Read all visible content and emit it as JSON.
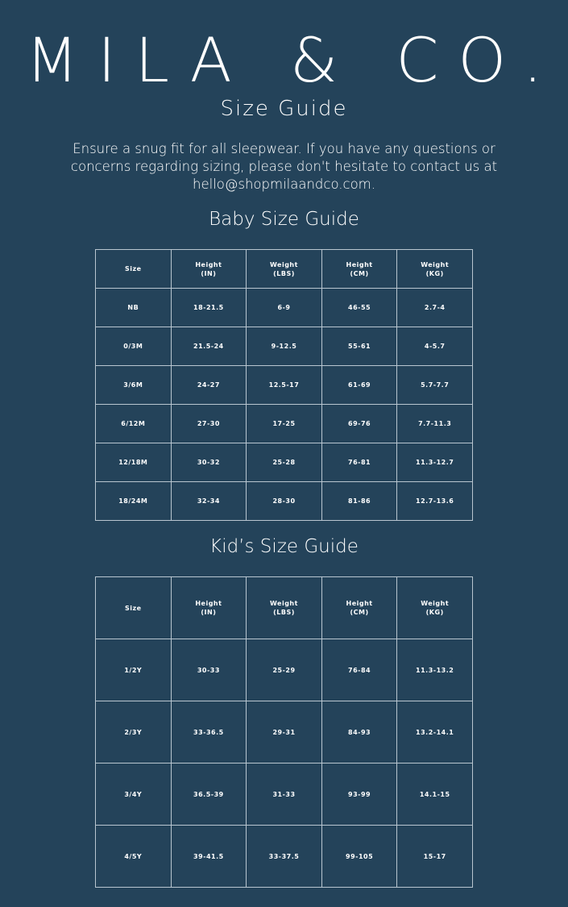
{
  "brand": {
    "logo": "MILA & CO."
  },
  "page": {
    "title": "Size Guide",
    "intro": "Ensure a snug fit for all sleepwear. If you have any questions or concerns regarding sizing, please don't hesitate to contact us at hello@shopmilaandco.com."
  },
  "colors": {
    "background": "#24435a",
    "text": "#ffffff",
    "grid": "#b9c6d0"
  },
  "baby": {
    "heading": "Baby Size Guide",
    "headers": [
      [
        "Size",
        ""
      ],
      [
        "Height",
        "(IN)"
      ],
      [
        "Weight",
        "(LBS)"
      ],
      [
        "Height",
        "(CM)"
      ],
      [
        "Weight",
        "(KG)"
      ]
    ],
    "rows": [
      [
        "NB",
        "18-21.5",
        "6-9",
        "46-55",
        "2.7-4"
      ],
      [
        "0/3M",
        "21.5-24",
        "9-12.5",
        "55-61",
        "4-5.7"
      ],
      [
        "3/6M",
        "24-27",
        "12.5-17",
        "61-69",
        "5.7-7.7"
      ],
      [
        "6/12M",
        "27-30",
        "17-25",
        "69-76",
        "7.7-11.3"
      ],
      [
        "12/18M",
        "30-32",
        "25-28",
        "76-81",
        "11.3-12.7"
      ],
      [
        "18/24M",
        "32-34",
        "28-30",
        "81-86",
        "12.7-13.6"
      ]
    ]
  },
  "kids": {
    "heading": "Kid’s Size Guide",
    "headers": [
      [
        "Size",
        ""
      ],
      [
        "Height",
        "(IN)"
      ],
      [
        "Weight",
        "(LBS)"
      ],
      [
        "Height",
        "(CM)"
      ],
      [
        "Weight",
        "(KG)"
      ]
    ],
    "rows": [
      [
        "1/2Y",
        "30-33",
        "25-29",
        "76-84",
        "11.3-13.2"
      ],
      [
        "2/3Y",
        "33-36.5",
        "29-31",
        "84-93",
        "13.2-14.1"
      ],
      [
        "3/4Y",
        "36.5-39",
        "31-33",
        "93-99",
        "14.1-15"
      ],
      [
        "4/5Y",
        "39-41.5",
        "33-37.5",
        "99-105",
        "15-17"
      ]
    ]
  }
}
